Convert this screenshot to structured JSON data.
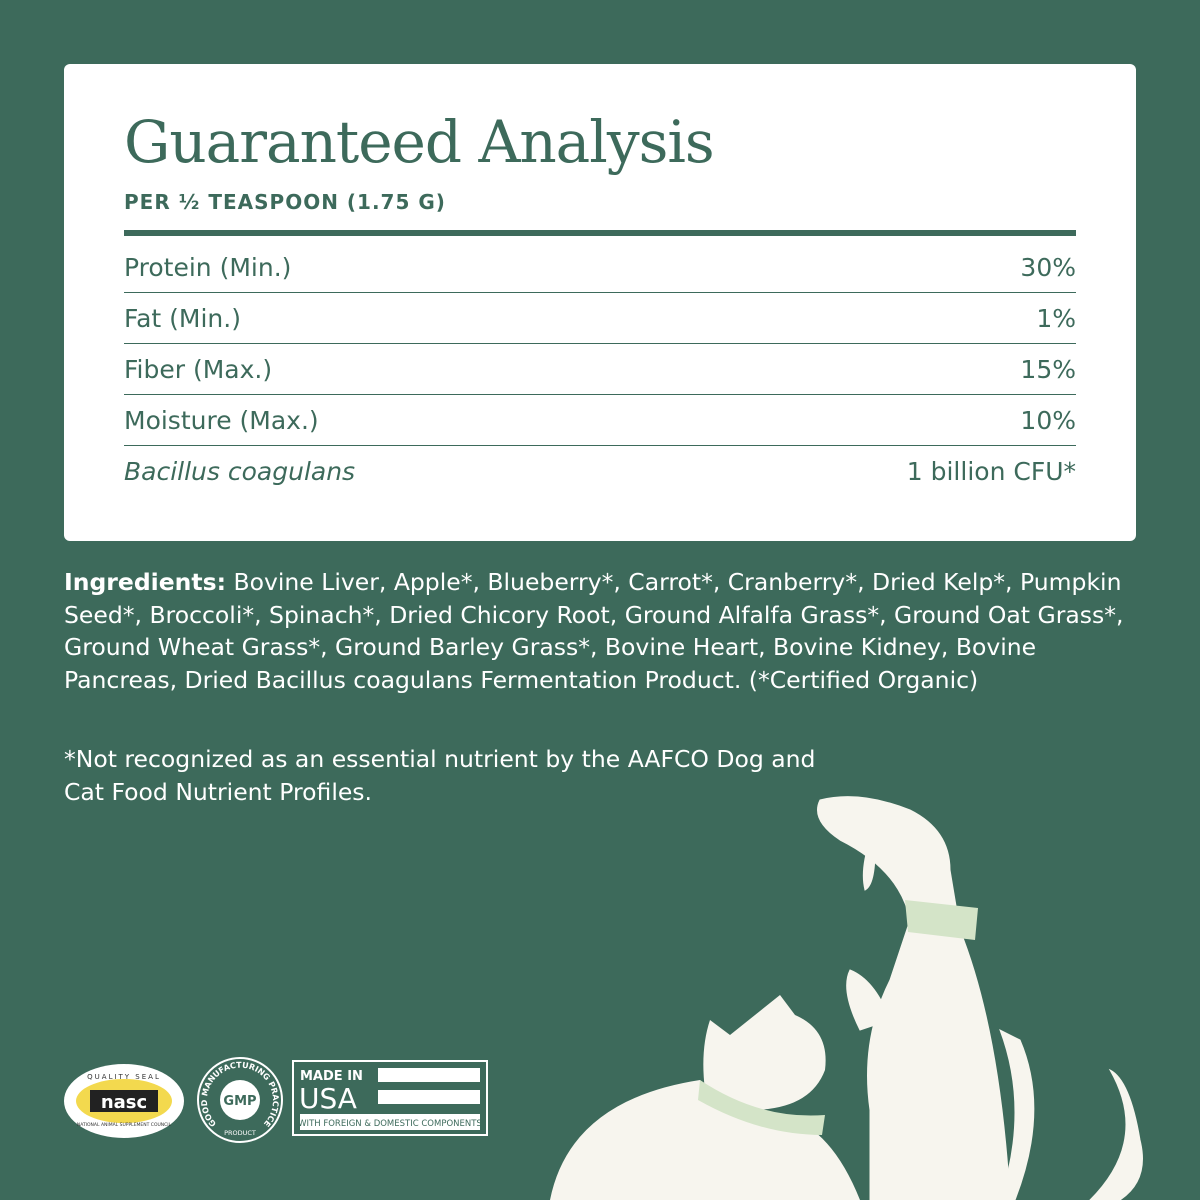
{
  "card": {
    "title": "Guaranteed Analysis",
    "subtitle": "PER ½ TEASPOON (1.75 G)",
    "rows": [
      {
        "label": "Protein (Min.)",
        "value": "30%"
      },
      {
        "label": "Fat (Min.)",
        "value": "1%"
      },
      {
        "label": "Fiber (Max.)",
        "value": "15%"
      },
      {
        "label": "Moisture (Max.)",
        "value": "10%"
      },
      {
        "label": "Bacillus coagulans",
        "value": "1 billion CFU*"
      }
    ]
  },
  "ingredients": {
    "heading": "Ingredients:",
    "text": " Bovine Liver,  Apple*, Blueberry*, Carrot*, Cranberry*, Dried Kelp*, Pumpkin Seed*, Broccoli*, Spinach*, Dried Chicory Root, Ground Alfalfa Grass*, Ground Oat Grass*, Ground Wheat Grass*, Ground Barley Grass*, Bovine Heart, Bovine Kidney, Bovine Pancreas, Dried Bacillus coagulans Fermentation Product. (*Certified Organic)"
  },
  "footnote": "*Not recognized as an essential nutrient by the AAFCO Dog and Cat Food Nutrient Profiles.",
  "badges": {
    "nasc": {
      "top": "QUALITY SEAL",
      "mark": "nasc",
      "bottom": "NATIONAL ANIMAL SUPPLEMENT COUNCIL"
    },
    "gmp": {
      "ring": "GOOD MANUFACTURING PRACTICE",
      "mark": "GMP",
      "bottom": "PRODUCT"
    },
    "usa": {
      "line1": "MADE IN",
      "line2": "USA",
      "line3": "WITH FOREIGN & DOMESTIC COMPONENTS"
    }
  },
  "colors": {
    "background": "#3d6a5b",
    "card": "#ffffff",
    "accent": "#3d6a5b",
    "collar": "#d4e4c8"
  }
}
